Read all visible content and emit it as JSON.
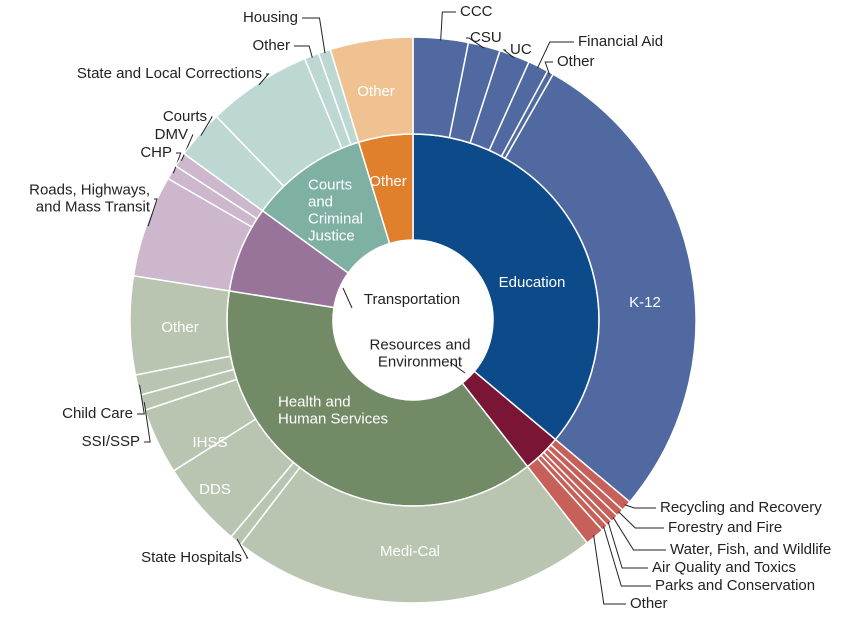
{
  "chart_data": {
    "type": "sunburst",
    "groups": [
      {
        "name": "Education",
        "value": 130,
        "color": "#0d4a8a",
        "child_color": "#5069a1",
        "children": [
          {
            "name": "CCC",
            "value": 11.3
          },
          {
            "name": "CSU",
            "value": 6.6
          },
          {
            "name": "UC",
            "value": 6.3
          },
          {
            "name": "Financial Aid",
            "value": 4.2
          },
          {
            "name": "Other",
            "value": 1.3
          },
          {
            "name": "K-12",
            "value": 100.3
          }
        ]
      },
      {
        "name": "Resources and\nEnvironment",
        "value": 12,
        "color": "#7a1535",
        "child_color": "#c8605a",
        "children": [
          {
            "name": "Recycling and Recovery",
            "value": 2.2
          },
          {
            "name": "Forestry and Fire",
            "value": 1.6
          },
          {
            "name": "Water, Fish, and Wildlife",
            "value": 1.6
          },
          {
            "name": "Air Quality and Toxics",
            "value": 1.2
          },
          {
            "name": "Parks and Conservation",
            "value": 1.4
          },
          {
            "name": "Other",
            "value": 4.0
          }
        ]
      },
      {
        "name": "Health and\nHuman Services",
        "value": 137,
        "color": "#738a66",
        "child_color": "#b9c5b1",
        "children": [
          {
            "name": "Medi-Cal",
            "value": 75.5
          },
          {
            "name": "State Hospitals",
            "value": 2.5
          },
          {
            "name": "DDS",
            "value": 17.8
          },
          {
            "name": "IHSS",
            "value": 13.6
          },
          {
            "name": "SSI/SSP",
            "value": 3.2
          },
          {
            "name": "Child Care",
            "value": 4.2
          },
          {
            "name": "Other",
            "value": 20.2
          }
        ]
      },
      {
        "name": "Transportation",
        "value": 27,
        "color": "#98749a",
        "child_color": "#ccb7cc",
        "children": [
          {
            "name": "Roads, Highways,\nand Mass Transit",
            "value": 21
          },
          {
            "name": "CHP",
            "value": 3
          },
          {
            "name": "DMV",
            "value": 3
          }
        ]
      },
      {
        "name": "Courts\nand\nCriminal\nJustice",
        "value": 37,
        "color": "#7fb0a4",
        "child_color": "#bdd8d2",
        "children": [
          {
            "name": "Courts",
            "value": 10
          },
          {
            "name": "State and Local Corrections",
            "value": 21.5
          },
          {
            "name": "Other",
            "value": 3
          },
          {
            "name": "Housing",
            "value": 2.5
          }
        ]
      },
      {
        "name": "Other",
        "value": 17,
        "color": "#e07f2c",
        "child_color": "#f0c292",
        "children": [
          {
            "name": "Other",
            "value": 17
          }
        ]
      }
    ]
  }
}
